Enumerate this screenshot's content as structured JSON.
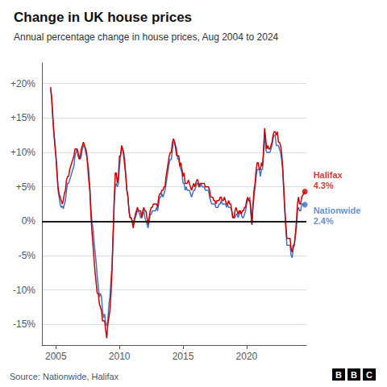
{
  "chart_data": {
    "type": "line",
    "title": "Change in UK house prices",
    "subtitle": "Annual percentage change in house prices, Aug 2004 to 2024",
    "source": "Source: Nationwide, Halifax",
    "logo": "BBC",
    "grid": true,
    "xlim": [
      2003.9,
      2024.7
    ],
    "xticks": [
      2005,
      2010,
      2015,
      2020
    ],
    "ylim": [
      -18,
      23
    ],
    "yticks": [
      {
        "value": -15,
        "label": "-15%"
      },
      {
        "value": -10,
        "label": "-10%"
      },
      {
        "value": -5,
        "label": "-5%"
      },
      {
        "value": 0,
        "label": "0%"
      },
      {
        "value": 5,
        "label": "+5%"
      },
      {
        "value": 10,
        "label": "+10%"
      },
      {
        "value": 15,
        "label": "+15%"
      },
      {
        "value": 20,
        "label": "+20%"
      }
    ],
    "reference_lines": [
      {
        "y": 0,
        "color": "#1a1a1a"
      }
    ],
    "x": [
      2004.583,
      2004.667,
      2004.75,
      2004.833,
      2004.917,
      2005.0,
      2005.083,
      2005.167,
      2005.25,
      2005.333,
      2005.417,
      2005.5,
      2005.583,
      2005.667,
      2005.75,
      2005.833,
      2005.917,
      2006.0,
      2006.083,
      2006.167,
      2006.25,
      2006.333,
      2006.417,
      2006.5,
      2006.583,
      2006.667,
      2006.75,
      2006.833,
      2006.917,
      2007.0,
      2007.083,
      2007.167,
      2007.25,
      2007.333,
      2007.417,
      2007.5,
      2007.583,
      2007.667,
      2007.75,
      2007.833,
      2007.917,
      2008.0,
      2008.083,
      2008.167,
      2008.25,
      2008.333,
      2008.417,
      2008.5,
      2008.583,
      2008.667,
      2008.75,
      2008.833,
      2008.917,
      2009.0,
      2009.083,
      2009.167,
      2009.25,
      2009.333,
      2009.417,
      2009.5,
      2009.583,
      2009.667,
      2009.75,
      2009.833,
      2009.917,
      2010.0,
      2010.083,
      2010.167,
      2010.25,
      2010.333,
      2010.417,
      2010.5,
      2010.583,
      2010.667,
      2010.75,
      2010.833,
      2010.917,
      2011.0,
      2011.083,
      2011.167,
      2011.25,
      2011.333,
      2011.417,
      2011.5,
      2011.583,
      2011.667,
      2011.75,
      2011.833,
      2011.917,
      2012.0,
      2012.083,
      2012.167,
      2012.25,
      2012.333,
      2012.417,
      2012.5,
      2012.583,
      2012.667,
      2012.75,
      2012.833,
      2012.917,
      2013.0,
      2013.083,
      2013.167,
      2013.25,
      2013.333,
      2013.417,
      2013.5,
      2013.583,
      2013.667,
      2013.75,
      2013.833,
      2013.917,
      2014.0,
      2014.083,
      2014.167,
      2014.25,
      2014.333,
      2014.417,
      2014.5,
      2014.583,
      2014.667,
      2014.75,
      2014.833,
      2014.917,
      2015.0,
      2015.083,
      2015.167,
      2015.25,
      2015.333,
      2015.417,
      2015.5,
      2015.583,
      2015.667,
      2015.75,
      2015.833,
      2015.917,
      2016.0,
      2016.083,
      2016.167,
      2016.25,
      2016.333,
      2016.417,
      2016.5,
      2016.583,
      2016.667,
      2016.75,
      2016.833,
      2016.917,
      2017.0,
      2017.083,
      2017.167,
      2017.25,
      2017.333,
      2017.417,
      2017.5,
      2017.583,
      2017.667,
      2017.75,
      2017.833,
      2017.917,
      2018.0,
      2018.083,
      2018.167,
      2018.25,
      2018.333,
      2018.417,
      2018.5,
      2018.583,
      2018.667,
      2018.75,
      2018.833,
      2018.917,
      2019.0,
      2019.083,
      2019.167,
      2019.25,
      2019.333,
      2019.417,
      2019.5,
      2019.583,
      2019.667,
      2019.75,
      2019.833,
      2019.917,
      2020.0,
      2020.083,
      2020.167,
      2020.25,
      2020.333,
      2020.417,
      2020.5,
      2020.583,
      2020.667,
      2020.75,
      2020.833,
      2020.917,
      2021.0,
      2021.083,
      2021.167,
      2021.25,
      2021.333,
      2021.417,
      2021.5,
      2021.583,
      2021.667,
      2021.75,
      2021.833,
      2021.917,
      2022.0,
      2022.083,
      2022.167,
      2022.25,
      2022.333,
      2022.417,
      2022.5,
      2022.583,
      2022.667,
      2022.75,
      2022.833,
      2022.917,
      2023.0,
      2023.083,
      2023.167,
      2023.25,
      2023.333,
      2023.417,
      2023.5,
      2023.583,
      2023.667,
      2023.75,
      2023.833,
      2023.917,
      2024.0,
      2024.083,
      2024.167,
      2024.25,
      2024.333,
      2024.583
    ],
    "series": [
      {
        "name": "Nationwide",
        "color": "#4472c4",
        "values": [
          19.1,
          17.8,
          15.0,
          13.0,
          11.5,
          9.5,
          7.5,
          4.5,
          3.5,
          2.5,
          2.0,
          2.2,
          1.8,
          2.5,
          3.0,
          4.5,
          5.5,
          5.5,
          6.0,
          6.5,
          7.0,
          7.5,
          8.0,
          9.5,
          10.0,
          10.5,
          10.0,
          9.5,
          9.0,
          9.5,
          10.5,
          11.0,
          11.0,
          10.0,
          9.5,
          8.5,
          7.5,
          5.0,
          2.0,
          0.0,
          -1.0,
          -3.0,
          -4.5,
          -6.0,
          -8.0,
          -9.5,
          -11.0,
          -10.5,
          -11.0,
          -13.0,
          -14.0,
          -13.5,
          -15.0,
          -15.2,
          -14.5,
          -12.0,
          -11.0,
          -8.5,
          -6.5,
          -2.0,
          2.5,
          5.0,
          5.5,
          5.0,
          5.5,
          8.0,
          9.5,
          10.5,
          10.5,
          10.0,
          9.0,
          6.5,
          4.5,
          3.5,
          1.5,
          0.5,
          0.5,
          0.0,
          -0.5,
          0.5,
          0.5,
          1.0,
          1.5,
          1.5,
          1.0,
          0.5,
          0.5,
          1.0,
          1.5,
          0.5,
          0.0,
          -0.5,
          -1.0,
          0.0,
          1.0,
          1.0,
          1.5,
          1.5,
          1.5,
          1.5,
          2.0,
          1.5,
          2.5,
          3.5,
          3.5,
          4.0,
          3.5,
          4.0,
          4.5,
          5.5,
          6.5,
          7.5,
          8.5,
          9.0,
          9.0,
          10.5,
          11.5,
          11.5,
          11.0,
          10.5,
          9.0,
          9.0,
          8.0,
          7.5,
          7.0,
          5.5,
          5.5,
          4.5,
          5.0,
          4.5,
          4.5,
          4.5,
          4.0,
          3.5,
          4.0,
          4.5,
          4.5,
          5.0,
          5.5,
          5.5,
          5.0,
          5.0,
          5.5,
          5.0,
          5.0,
          5.0,
          4.5,
          4.5,
          4.5,
          4.5,
          3.5,
          3.0,
          2.5,
          2.5,
          2.5,
          2.5,
          2.0,
          2.0,
          2.0,
          2.5,
          2.5,
          3.0,
          2.5,
          2.5,
          2.5,
          2.5,
          2.0,
          2.5,
          2.0,
          2.0,
          2.0,
          1.5,
          0.5,
          0.5,
          0.5,
          1.0,
          1.0,
          0.5,
          1.0,
          1.5,
          1.0,
          0.5,
          0.5,
          1.0,
          1.5,
          2.5,
          3.0,
          3.0,
          3.5,
          1.0,
          -0.5,
          2.0,
          3.5,
          5.0,
          6.5,
          7.5,
          7.5,
          7.5,
          6.5,
          7.5,
          7.5,
          10.5,
          13.0,
          10.5,
          10.0,
          10.0,
          10.0,
          10.0,
          10.5,
          11.0,
          12.0,
          12.5,
          12.5,
          11.0,
          11.0,
          11.0,
          10.5,
          10.0,
          9.0,
          7.5,
          4.5,
          1.5,
          -1.0,
          -3.5,
          -3.5,
          -3.5,
          -3.5,
          -5.0,
          -5.3,
          -4.0,
          -3.5,
          -2.0,
          -1.0,
          1.5,
          2.0,
          1.5,
          1.5,
          2.5,
          2.4
        ]
      },
      {
        "name": "Halifax",
        "color": "#cc0000",
        "values": [
          19.5,
          18.0,
          15.5,
          13.0,
          11.0,
          9.5,
          7.0,
          5.0,
          4.0,
          3.5,
          3.0,
          2.5,
          3.0,
          4.0,
          4.5,
          6.0,
          6.5,
          6.5,
          7.5,
          8.0,
          8.5,
          9.0,
          9.5,
          10.5,
          10.5,
          10.5,
          9.5,
          9.0,
          9.5,
          10.5,
          11.0,
          11.5,
          11.0,
          10.5,
          10.0,
          8.0,
          6.0,
          4.5,
          1.0,
          -1.5,
          -3.5,
          -5.5,
          -7.5,
          -9.0,
          -10.5,
          -10.5,
          -12.0,
          -12.5,
          -13.0,
          -14.5,
          -14.5,
          -14.5,
          -15.9,
          -17.0,
          -15.0,
          -14.0,
          -13.0,
          -10.5,
          -7.0,
          -2.0,
          3.0,
          7.0,
          7.0,
          5.5,
          6.5,
          9.5,
          9.5,
          11.0,
          10.5,
          9.5,
          8.0,
          6.5,
          4.5,
          3.5,
          1.5,
          0.5,
          0.5,
          0.0,
          -1.0,
          0.0,
          1.0,
          1.5,
          2.0,
          1.5,
          1.5,
          1.5,
          0.5,
          1.5,
          2.0,
          1.5,
          1.5,
          0.5,
          -0.5,
          0.5,
          1.5,
          2.0,
          2.0,
          2.5,
          2.5,
          2.5,
          2.5,
          2.0,
          3.5,
          4.0,
          4.0,
          4.5,
          4.5,
          5.0,
          5.0,
          6.5,
          7.5,
          8.5,
          9.5,
          10.0,
          10.0,
          11.5,
          12.0,
          11.5,
          10.5,
          9.5,
          9.5,
          9.5,
          8.0,
          8.5,
          7.5,
          6.5,
          7.0,
          5.5,
          5.5,
          5.5,
          6.0,
          5.5,
          5.0,
          4.5,
          5.0,
          5.5,
          5.0,
          5.5,
          6.0,
          6.0,
          5.0,
          5.5,
          5.5,
          5.5,
          5.5,
          5.5,
          5.0,
          5.0,
          5.0,
          5.0,
          4.5,
          3.5,
          3.5,
          3.5,
          3.0,
          3.0,
          2.5,
          3.0,
          3.0,
          3.0,
          3.5,
          3.5,
          3.0,
          3.0,
          3.5,
          3.0,
          2.5,
          2.5,
          3.0,
          2.5,
          2.5,
          1.5,
          0.5,
          0.5,
          1.5,
          2.0,
          1.5,
          1.0,
          1.5,
          1.5,
          1.0,
          1.5,
          1.5,
          2.0,
          2.0,
          3.0,
          3.5,
          3.0,
          3.0,
          2.0,
          -0.5,
          2.5,
          4.5,
          5.5,
          7.5,
          8.5,
          8.5,
          7.5,
          7.5,
          8.5,
          8.0,
          10.0,
          13.5,
          12.0,
          10.5,
          11.0,
          10.5,
          10.5,
          11.0,
          11.5,
          12.5,
          13.0,
          13.0,
          12.5,
          13.0,
          11.5,
          11.5,
          11.0,
          10.0,
          8.0,
          5.0,
          2.0,
          -0.5,
          -2.5,
          -2.5,
          -2.5,
          -2.5,
          -4.0,
          -4.5,
          -3.5,
          -3.5,
          -2.0,
          0.0,
          2.5,
          3.5,
          2.5,
          2.5,
          3.5,
          4.3
        ]
      }
    ],
    "annotations": [
      {
        "text": "Halifax\n4.3%",
        "x": 2024.583,
        "y": 4.3,
        "color": "#cc0000"
      },
      {
        "text": "Nationwide\n2.4%",
        "x": 2024.583,
        "y": 2.4,
        "color": "#4472c4"
      }
    ]
  }
}
